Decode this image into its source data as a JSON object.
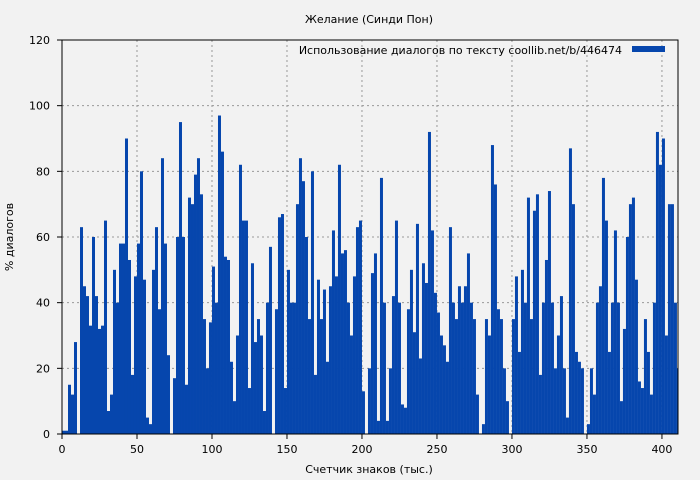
{
  "chart_data": {
    "type": "bar",
    "title": "Желание (Синди Пон)",
    "xlabel": "Счетчик знаков (тыс.)",
    "ylabel": "% диалогов",
    "xlim": [
      0,
      410.7
    ],
    "ylim": [
      0,
      120
    ],
    "xticks": [
      0,
      50,
      100,
      150,
      200,
      250,
      300,
      350,
      400
    ],
    "yticks": [
      0,
      20,
      40,
      60,
      80,
      100,
      120
    ],
    "grid": true,
    "legend": {
      "placement": "top-right",
      "label": "Использование диалогов по тексту  coollib.net/b/446474"
    },
    "bar_color": "#0646ad",
    "x_step": 2,
    "series": [
      {
        "name": "Использование диалогов по тексту  coollib.net/b/446474",
        "values": [
          1,
          1,
          15,
          12,
          28,
          0,
          63,
          45,
          42,
          33,
          60,
          42,
          32,
          33,
          65,
          7,
          12,
          50,
          40,
          58,
          58,
          90,
          53,
          18,
          48,
          58,
          80,
          47,
          5,
          3,
          50,
          63,
          38,
          84,
          58,
          24,
          0,
          17,
          60,
          95,
          60,
          15,
          72,
          70,
          79,
          84,
          73,
          35,
          20,
          34,
          51,
          40,
          97,
          86,
          54,
          53,
          22,
          10,
          30,
          82,
          65,
          65,
          14,
          52,
          28,
          35,
          30,
          7,
          40,
          57,
          0,
          38,
          66,
          67,
          14,
          50,
          40,
          40,
          70,
          84,
          77,
          60,
          35,
          80,
          18,
          47,
          35,
          44,
          22,
          45,
          62,
          48,
          82,
          55,
          56,
          40,
          30,
          48,
          63,
          65,
          13,
          0,
          20,
          49,
          55,
          4,
          78,
          40,
          4,
          20,
          42,
          65,
          40,
          9,
          8,
          38,
          50,
          31,
          64,
          23,
          52,
          46,
          92,
          62,
          43,
          37,
          30,
          27,
          22,
          63,
          40,
          35,
          45,
          40,
          45,
          55,
          40,
          35,
          12,
          0,
          3,
          35,
          30,
          88,
          76,
          38,
          35,
          20,
          10,
          0,
          35,
          48,
          25,
          50,
          40,
          72,
          35,
          68,
          73,
          18,
          40,
          53,
          74,
          40,
          20,
          30,
          42,
          20,
          5,
          87,
          70,
          25,
          22,
          20,
          0,
          3,
          20,
          12,
          40,
          45,
          78,
          65,
          25,
          40,
          62,
          40,
          10,
          32,
          60,
          70,
          72,
          47,
          16,
          14,
          35,
          25,
          12,
          40,
          92,
          82,
          90,
          30,
          70,
          70,
          40,
          20,
          7
        ]
      }
    ]
  }
}
